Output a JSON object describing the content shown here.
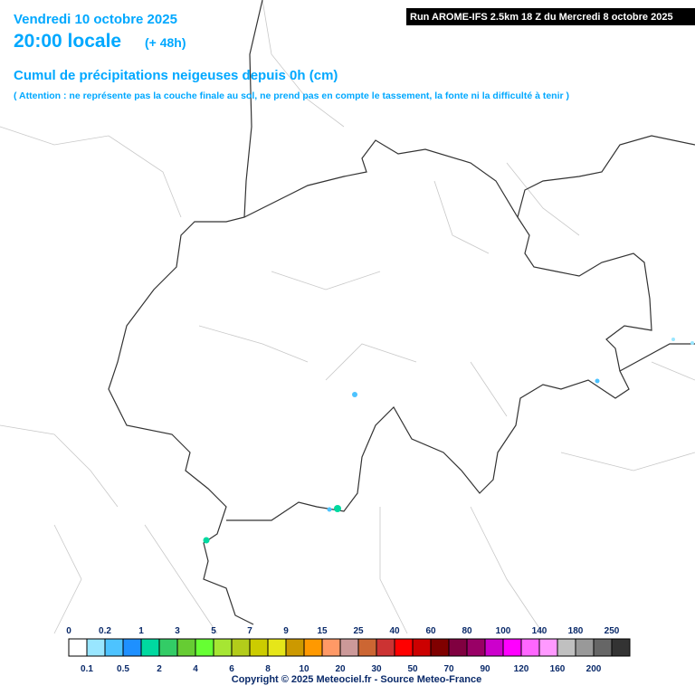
{
  "header": {
    "date": "Vendredi 10 octobre 2025",
    "time": "20:00 locale",
    "lead": "(+ 48h)",
    "run": "Run AROME-IFS 2.5km 18 Z du Mercredi 8 octobre 2025",
    "title": "Cumul de précipitations neigeuses depuis 0h (cm)",
    "note": "( Attention : ne représente pas la couche finale au sol, ne prend pas en compte le tassement, la fonte ni la difficulté à tenir )"
  },
  "legend": {
    "thresholds": [
      0,
      0.1,
      0.2,
      0.5,
      1,
      2,
      3,
      4,
      5,
      6,
      7,
      8,
      9,
      10,
      15,
      20,
      25,
      30,
      40,
      50,
      60,
      70,
      80,
      90,
      100,
      120,
      140,
      160,
      180,
      200,
      250
    ],
    "colors": [
      "#ffffff",
      "#99e6ff",
      "#4dc3ff",
      "#1e90ff",
      "#00d9a0",
      "#33cc66",
      "#66cc33",
      "#66ff33",
      "#a6e633",
      "#b3cc1a",
      "#cccc00",
      "#e6e619",
      "#cc9900",
      "#ff9900",
      "#ff9966",
      "#cc9999",
      "#cc6633",
      "#cc3333",
      "#ff0000",
      "#cc0000",
      "#800000",
      "#800040",
      "#990066",
      "#cc00cc",
      "#ff00ff",
      "#ff66ff",
      "#ff99ff",
      "#c0c0c0",
      "#999999",
      "#666666",
      "#333333"
    ]
  },
  "footer": {
    "copyright": "Copyright © 2025 Meteociel.fr - Source Meteo-France"
  }
}
